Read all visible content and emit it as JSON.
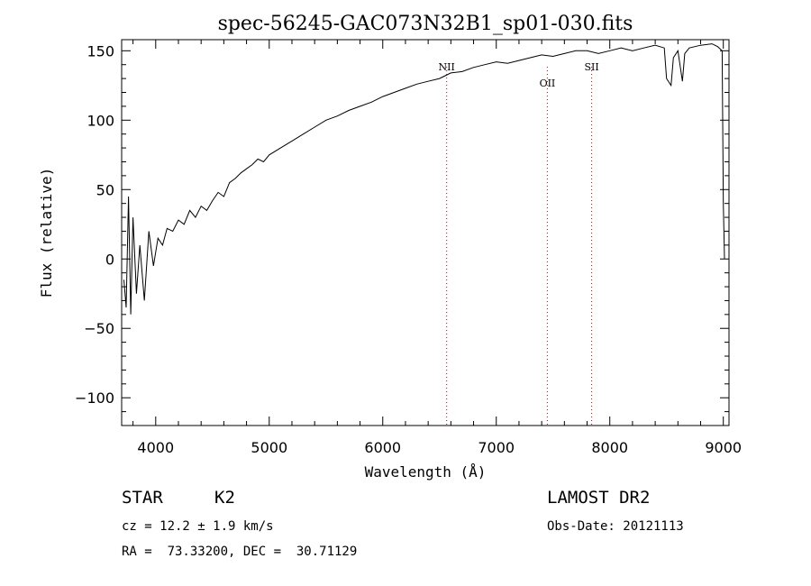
{
  "chart_data": {
    "type": "line",
    "title": "spec-56245-GAC073N32B1_sp01-030.fits",
    "xlabel": "Wavelength (Å)",
    "ylabel": "Flux (relative)",
    "xlim": [
      3700,
      9050
    ],
    "ylim": [
      -120,
      158
    ],
    "xticks": [
      4000,
      5000,
      6000,
      7000,
      8000,
      9000
    ],
    "yticks": [
      -100,
      -50,
      0,
      50,
      100,
      150
    ],
    "grid": false,
    "line_color": "#000000",
    "marker_color": "#d00000",
    "series": [
      {
        "values_x": [
          3720,
          3740,
          3760,
          3780,
          3800,
          3830,
          3860,
          3900,
          3940,
          3980,
          4020,
          4060,
          4100,
          4150,
          4200,
          4250,
          4300,
          4350,
          4400,
          4450,
          4500,
          4550,
          4600,
          4650,
          4700,
          4750,
          4800,
          4850,
          4900,
          4950,
          5000,
          5100,
          5200,
          5300,
          5400,
          5500,
          5600,
          5700,
          5800,
          5900,
          6000,
          6100,
          6200,
          6300,
          6400,
          6500,
          6550,
          6600,
          6700,
          6800,
          6900,
          7000,
          7100,
          7200,
          7300,
          7400,
          7500,
          7600,
          7700,
          7800,
          7900,
          8000,
          8100,
          8200,
          8300,
          8400,
          8480,
          8500,
          8540,
          8560,
          8600,
          8640,
          8660,
          8700,
          8800,
          8900,
          8950,
          8990,
          9000,
          9010
        ],
        "values_y": [
          -15,
          -35,
          45,
          -40,
          30,
          -25,
          10,
          -30,
          20,
          -5,
          15,
          10,
          22,
          20,
          28,
          25,
          35,
          30,
          38,
          35,
          42,
          48,
          45,
          55,
          58,
          62,
          65,
          68,
          72,
          70,
          75,
          80,
          85,
          90,
          95,
          100,
          103,
          107,
          110,
          113,
          117,
          120,
          123,
          126,
          128,
          130,
          132,
          134,
          135,
          138,
          140,
          142,
          141,
          143,
          145,
          147,
          146,
          148,
          150,
          150,
          148,
          150,
          152,
          150,
          152,
          154,
          152,
          130,
          125,
          145,
          150,
          128,
          148,
          152,
          154,
          155,
          153,
          150,
          40,
          0
        ]
      }
    ],
    "lines": [
      {
        "label": "NII",
        "x": 6563
      },
      {
        "label": "OII",
        "x": 7450
      },
      {
        "label": "SII",
        "x": 7840
      }
    ]
  },
  "info": {
    "class_label": "STAR",
    "subclass": "K2",
    "survey": "LAMOST DR2",
    "cz": "cz = 12.2 ± 1.9 km/s",
    "obs_date": "Obs-Date: 20121113",
    "coords": "RA =  73.33200, DEC =  30.71129"
  }
}
